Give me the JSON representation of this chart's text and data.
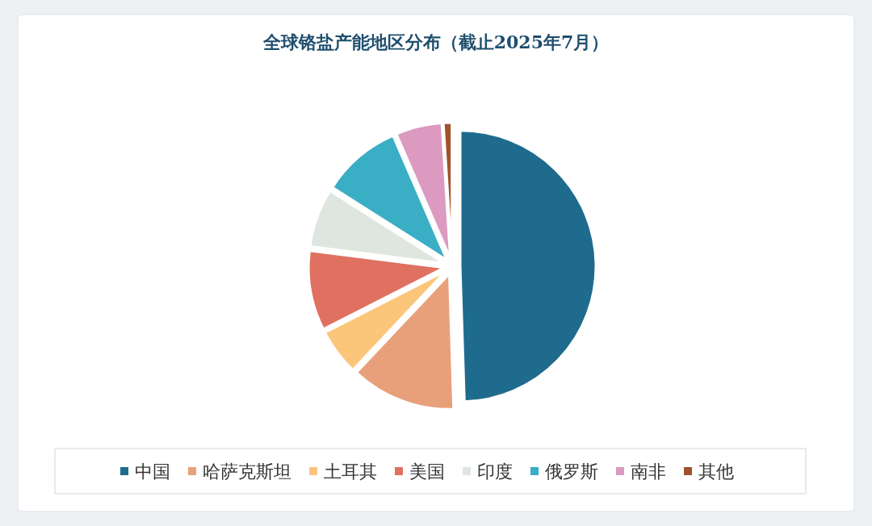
{
  "chart_data": {
    "type": "pie",
    "title": "全球铬盐产能地区分布（截止2025年7月）",
    "categories": [
      "中国",
      "哈萨克斯坦",
      "土耳其",
      "美国",
      "印度",
      "俄罗斯",
      "南非",
      "其他"
    ],
    "values": [
      49.5,
      12.5,
      5.5,
      9.5,
      7,
      9.5,
      5.5,
      1
    ],
    "colors": [
      "#1f6b8e",
      "#e8a07a",
      "#fbc57a",
      "#e07060",
      "#dfe6df",
      "#3aaec4",
      "#dc9ac0",
      "#a0522d"
    ],
    "legend": "bottom"
  }
}
